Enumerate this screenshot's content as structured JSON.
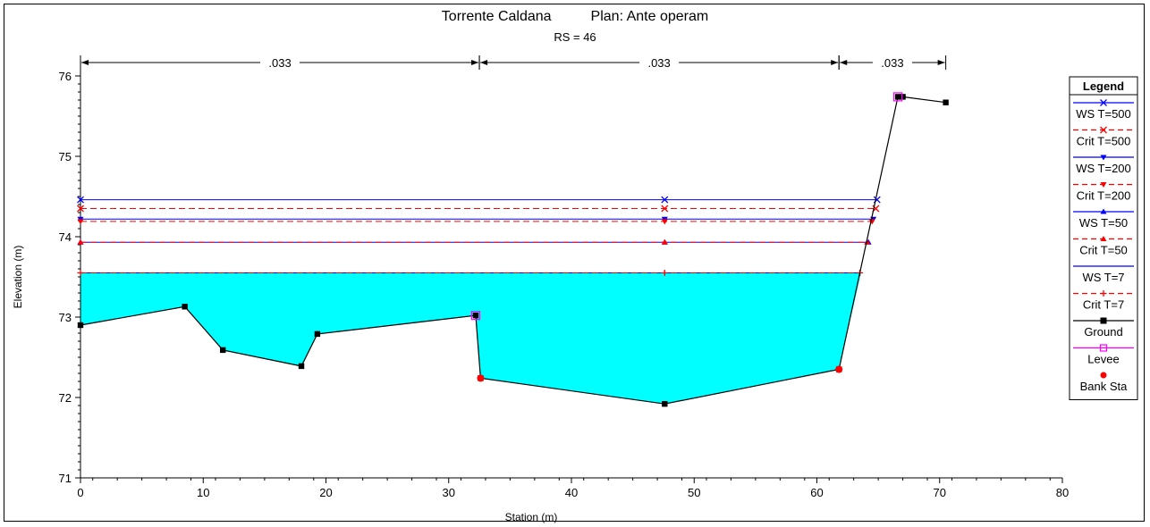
{
  "chart_data": {
    "type": "line",
    "title": "Torrente Caldana",
    "plan_label": "Plan: Ante operam",
    "subtitle": "RS = 46",
    "xlabel": "Station (m)",
    "ylabel": "Elevation (m)",
    "xlim": [
      0,
      80
    ],
    "ylim": [
      71,
      76.2
    ],
    "x_ticks": [
      0,
      10,
      20,
      30,
      40,
      50,
      60,
      70,
      80
    ],
    "y_ticks": [
      71,
      72,
      73,
      74,
      75,
      76
    ],
    "legend_title": "Legend",
    "legend_position": "right",
    "manning": [
      {
        "label": ".033",
        "from": 0,
        "to": 32.5
      },
      {
        "label": ".033",
        "from": 32.5,
        "to": 61.8
      },
      {
        "label": ".033",
        "from": 61.8,
        "to": 70.5
      }
    ],
    "ground": {
      "name": "Ground",
      "color": "#000000",
      "x": [
        0,
        8.5,
        11.6,
        18,
        19.3,
        32.2,
        32.6,
        47.6,
        61.8,
        66.6,
        67,
        70.5
      ],
      "y": [
        72.9,
        73.13,
        72.59,
        72.39,
        72.79,
        73.02,
        72.24,
        71.92,
        72.35,
        75.74,
        75.74,
        75.67
      ]
    },
    "levees": {
      "name": "Levee",
      "color": "#ff00ff",
      "x": [
        32.2,
        66.6
      ],
      "y": [
        73.02,
        75.74
      ]
    },
    "bank_stations": {
      "name": "Bank Sta",
      "color": "#ff0000",
      "x": [
        32.6,
        61.8
      ],
      "y": [
        72.24,
        72.35
      ]
    },
    "water_fill_color": "#00ffff",
    "series": [
      {
        "name": "WS T=500",
        "elev": 74.46,
        "x_end": 64.9,
        "color": "#0000ff",
        "dash": false,
        "marker": "x"
      },
      {
        "name": "Crit T=500",
        "elev": 74.35,
        "x_end": 64.8,
        "color": "#ff0000",
        "dash": true,
        "marker": "x"
      },
      {
        "name": "WS T=200",
        "elev": 74.22,
        "x_end": 64.6,
        "color": "#0000ff",
        "dash": false,
        "marker": "tri-down"
      },
      {
        "name": "Crit T=200",
        "elev": 74.19,
        "x_end": 64.5,
        "color": "#ff0000",
        "dash": true,
        "marker": "tri-down"
      },
      {
        "name": "WS T=50",
        "elev": 73.93,
        "x_end": 64.2,
        "color": "#0000ff",
        "dash": false,
        "marker": "tri-up"
      },
      {
        "name": "Crit T=50",
        "elev": 73.93,
        "x_end": 64.1,
        "color": "#ff0000",
        "dash": true,
        "marker": "tri-up"
      },
      {
        "name": "WS T=7",
        "elev": 73.55,
        "x_end": 63.6,
        "color": "#0000ff",
        "dash": false,
        "marker": "none"
      },
      {
        "name": "Crit T=7",
        "elev": 73.55,
        "x_end": 63.5,
        "color": "#ff0000",
        "dash": true,
        "marker": "plus"
      }
    ]
  }
}
